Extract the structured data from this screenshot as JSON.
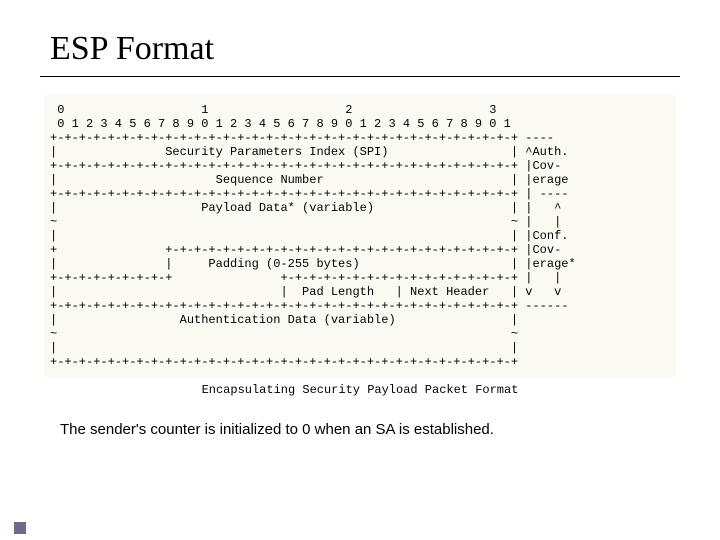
{
  "title": "ESP Format",
  "diagram": {
    "font_family": "Courier New",
    "font_size_pt": 9,
    "background_color": "#fafaf2",
    "text_color": "#000000",
    "lines": [
      " 0                   1                   2                   3",
      " 0 1 2 3 4 5 6 7 8 9 0 1 2 3 4 5 6 7 8 9 0 1 2 3 4 5 6 7 8 9 0 1",
      "+-+-+-+-+-+-+-+-+-+-+-+-+-+-+-+-+-+-+-+-+-+-+-+-+-+-+-+-+-+-+-+-+ ----",
      "|               Security Parameters Index (SPI)                 | ^Auth.",
      "+-+-+-+-+-+-+-+-+-+-+-+-+-+-+-+-+-+-+-+-+-+-+-+-+-+-+-+-+-+-+-+-+ |Cov-",
      "|                      Sequence Number                          | |erage",
      "+-+-+-+-+-+-+-+-+-+-+-+-+-+-+-+-+-+-+-+-+-+-+-+-+-+-+-+-+-+-+-+-+ | ----",
      "|                    Payload Data* (variable)                   | |   ^",
      "~                                                               ~ |   |",
      "|                                                               | |Conf.",
      "+               +-+-+-+-+-+-+-+-+-+-+-+-+-+-+-+-+-+-+-+-+-+-+-+-+ |Cov-",
      "|               |     Padding (0-255 bytes)                     | |erage*",
      "+-+-+-+-+-+-+-+-+               +-+-+-+-+-+-+-+-+-+-+-+-+-+-+-+-+ |   |",
      "|                               |  Pad Length   | Next Header   | v   v",
      "+-+-+-+-+-+-+-+-+-+-+-+-+-+-+-+-+-+-+-+-+-+-+-+-+-+-+-+-+-+-+-+-+ ------",
      "|                 Authentication Data (variable)                |",
      "~                                                               ~",
      "|                                                               |",
      "+-+-+-+-+-+-+-+-+-+-+-+-+-+-+-+-+-+-+-+-+-+-+-+-+-+-+-+-+-+-+-+-+"
    ],
    "caption": "Encapsulating Security Payload Packet Format"
  },
  "note": "The sender's counter is initialized to 0 when an SA is established.",
  "colors": {
    "page_bg": "#ffffff",
    "rule": "#000000",
    "footer_accent": "#6b6b8a"
  }
}
